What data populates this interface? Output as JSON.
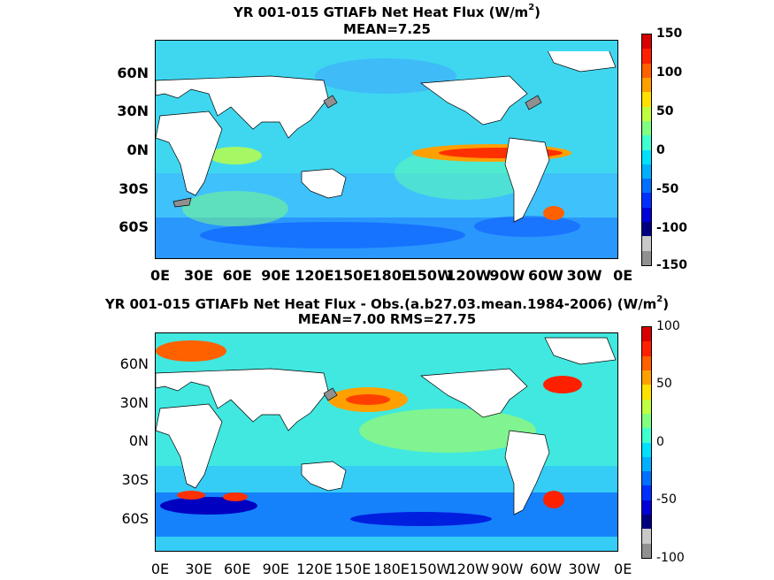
{
  "panel1": {
    "title_line1_pre": "YR 001-015 GTIAFb  Net Heat Flux (W/m",
    "title_sup": "2",
    "title_line1_post": ")",
    "title_line2": "MEAN=7.25",
    "lat_labels": [
      "60N",
      "30N",
      "0N",
      "30S",
      "60S"
    ],
    "lon_labels": [
      "0E",
      "30E",
      "60E",
      "90E",
      "120E",
      "150E",
      "180E",
      "150W",
      "120W",
      "90W",
      "60W",
      "30W",
      "0E"
    ],
    "colorbar_ticks": [
      "150",
      "100",
      "50",
      "0",
      "-50",
      "-100",
      "-150"
    ]
  },
  "panel2": {
    "title_line1_pre": "YR 001-015 GTIAFb  Net Heat Flux - Obs.(a.b27.03.mean.1984-2006) (W/m",
    "title_sup": "2",
    "title_line1_post": ")",
    "title_line2": "MEAN=7.00 RMS=27.75",
    "lat_labels": [
      "60N",
      "30N",
      "0N",
      "30S",
      "60S"
    ],
    "lon_labels": [
      "0E",
      "30E",
      "60E",
      "90E",
      "120E",
      "150E",
      "180E",
      "150W",
      "120W",
      "90W",
      "60W",
      "30W",
      "0E"
    ],
    "colorbar_ticks": [
      "100",
      "50",
      "0",
      "-50",
      "-100"
    ]
  },
  "colors": {
    "colormap": [
      "#00007f",
      "#0000d8",
      "#0030ff",
      "#0070ff",
      "#00b0ff",
      "#00e0ff",
      "#40ffd0",
      "#80ff80",
      "#c0ff40",
      "#ffe000",
      "#ffa000",
      "#ff6000",
      "#ff2000",
      "#d80000"
    ],
    "ocean_base": "#3fd7f0",
    "land": "#ffffff",
    "ice": "#909090"
  }
}
